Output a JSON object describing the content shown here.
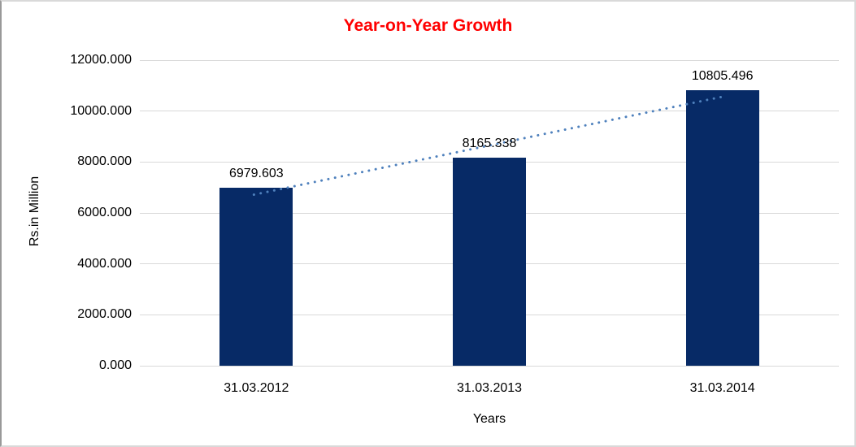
{
  "chart_data": {
    "type": "bar",
    "title": "Year-on-Year Growth",
    "title_color": "#FF0000",
    "categories": [
      "31.03.2012",
      "31.03.2013",
      "31.03.2014"
    ],
    "values": [
      6979.603,
      8165.338,
      10805.496
    ],
    "data_labels": [
      "6979.603",
      "8165.338",
      "10805.496"
    ],
    "xlabel": "Years",
    "ylabel": "Rs.in Million",
    "ylim": [
      0,
      12000
    ],
    "ytick_step": 2000,
    "ytick_labels": [
      "0.000",
      "2000.000",
      "4000.000",
      "6000.000",
      "8000.000",
      "10000.000",
      "12000.000"
    ],
    "grid": true,
    "legend_position": "none",
    "bar_color": "#072A66",
    "gridline_color": "#D9D9D9",
    "trendline": {
      "type": "linear",
      "style": "dotted",
      "color": "#4F81BD"
    }
  }
}
